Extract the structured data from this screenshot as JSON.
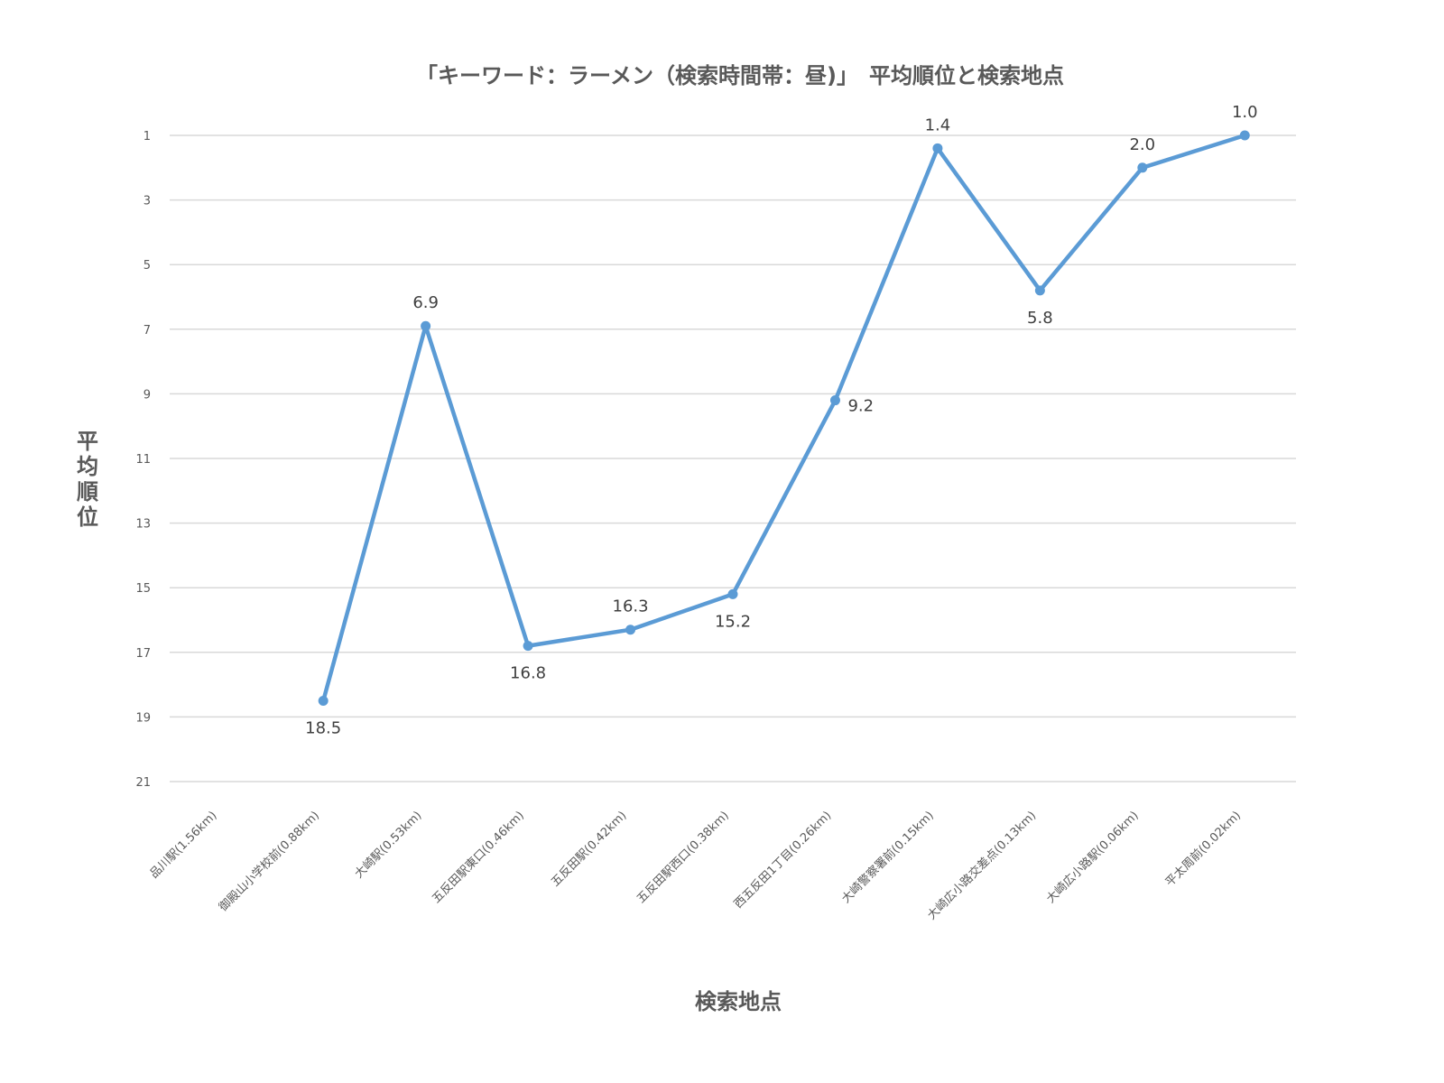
{
  "chart_data": {
    "type": "line",
    "title": "「キーワード：ラーメン（検索時間帯：昼)」　平均順位と検索地点",
    "xlabel": "検索地点",
    "ylabel": "平均順位",
    "y_reversed": true,
    "ylim": [
      1,
      21
    ],
    "yticks": [
      "1",
      "3",
      "5",
      "7",
      "9",
      "11",
      "13",
      "15",
      "17",
      "19",
      "21"
    ],
    "grid": true,
    "legend": "none",
    "line_color": "#5b9bd5",
    "categories": [
      "品川駅(1.56km)",
      "御殿山小学校前(0.88km)",
      "大崎駅(0.53km)",
      "五反田駅東口(0.46km)",
      "五反田駅(0.42km)",
      "五反田駅西口(0.38km)",
      "西五反田1丁目(0.26km)",
      "大崎警察署前(0.15km)",
      "大崎広小路交差点(0.13km)",
      "大崎広小路駅(0.06km)",
      "平太周前(0.02km)"
    ],
    "values": [
      null,
      18.5,
      6.9,
      16.8,
      16.3,
      15.2,
      9.2,
      1.4,
      5.8,
      2.0,
      1.0
    ],
    "data_labels": [
      "",
      "18.5",
      "6.9",
      "16.8",
      "16.3",
      "15.2",
      "9.2",
      "1.4",
      "5.8",
      "2.0",
      "1.0"
    ],
    "label_position": [
      "",
      "below",
      "above",
      "below",
      "above",
      "below",
      "right",
      "above",
      "below",
      "above",
      "above"
    ]
  }
}
